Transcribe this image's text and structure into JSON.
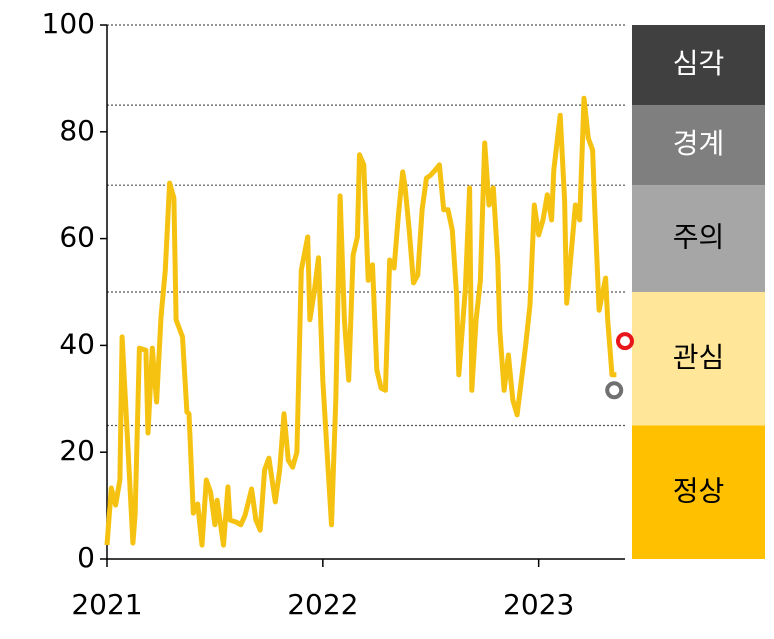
{
  "chart_data": {
    "type": "line",
    "x": [
      2021.0,
      2021.02,
      2021.04,
      2021.06,
      2021.07,
      2021.1,
      2021.12,
      2021.13,
      2021.15,
      2021.18,
      2021.19,
      2021.21,
      2021.23,
      2021.25,
      2021.27,
      2021.29,
      2021.31,
      2021.32,
      2021.35,
      2021.37,
      2021.38,
      2021.4,
      2021.42,
      2021.44,
      2021.46,
      2021.48,
      2021.5,
      2021.51,
      2021.54,
      2021.56,
      2021.57,
      2021.6,
      2021.62,
      2021.64,
      2021.67,
      2021.69,
      2021.71,
      2021.73,
      2021.75,
      2021.78,
      2021.8,
      2021.82,
      2021.84,
      2021.86,
      2021.88,
      2021.9,
      2021.93,
      2021.94,
      2021.96,
      2021.98,
      2022.0,
      2022.02,
      2022.04,
      2022.06,
      2022.08,
      2022.1,
      2022.12,
      2022.14,
      2022.16,
      2022.17,
      2022.19,
      2022.21,
      2022.23,
      2022.25,
      2022.27,
      2022.29,
      2022.31,
      2022.33,
      2022.35,
      2022.37,
      2022.38,
      2022.4,
      2022.42,
      2022.44,
      2022.46,
      2022.48,
      2022.5,
      2022.52,
      2022.54,
      2022.56,
      2022.58,
      2022.6,
      2022.62,
      2022.63,
      2022.66,
      2022.68,
      2022.69,
      2022.71,
      2022.73,
      2022.75,
      2022.77,
      2022.79,
      2022.81,
      2022.82,
      2022.84,
      2022.86,
      2022.88,
      2022.9,
      2022.92,
      2022.94,
      2022.96,
      2022.98,
      2023.0,
      2023.02,
      2023.04,
      2023.06,
      2023.07,
      2023.1,
      2023.12,
      2023.13,
      2023.15,
      2023.17,
      2023.19,
      2023.21,
      2023.23,
      2023.25,
      2023.26,
      2023.28,
      2023.31,
      2023.32,
      2023.34,
      2023.36
    ],
    "series": [
      {
        "color": "#f5c211",
        "values": [
          2.6,
          13.3,
          10.1,
          14.8,
          41.6,
          18.5,
          3.0,
          8.2,
          39.5,
          39.1,
          23.6,
          39.5,
          29.4,
          45.3,
          54.1,
          70.4,
          67.6,
          44.8,
          41.6,
          27.5,
          27.2,
          8.6,
          10.3,
          2.6,
          14.8,
          12.5,
          6.4,
          11.0,
          2.6,
          13.5,
          7.3,
          6.9,
          6.4,
          8.2,
          13.1,
          7.3,
          5.4,
          16.7,
          18.9,
          10.7,
          16.7,
          27.2,
          18.5,
          17.2,
          20.0,
          54.1,
          60.3,
          44.8,
          50.0,
          56.4,
          33.5,
          20.0,
          6.4,
          29.8,
          68.0,
          44.8,
          33.5,
          56.9,
          60.3,
          75.7,
          73.8,
          52.2,
          55.1,
          35.4,
          32.0,
          31.6,
          56.0,
          54.5,
          64.4,
          72.5,
          70.0,
          61.6,
          51.7,
          53.2,
          65.4,
          71.3,
          71.9,
          72.8,
          73.8,
          65.4,
          65.4,
          61.6,
          49.4,
          34.5,
          50.4,
          69.5,
          31.6,
          44.8,
          52.2,
          77.9,
          66.3,
          69.5,
          56.0,
          42.9,
          31.6,
          38.2,
          29.8,
          27.0,
          33.5,
          40.1,
          47.6,
          66.3,
          60.7,
          63.5,
          68.2,
          63.5,
          72.8,
          83.1,
          67.2,
          47.9,
          56.9,
          66.3,
          63.5,
          86.3,
          78.8,
          76.6,
          65.4,
          46.6,
          52.6,
          44.8,
          34.5,
          34.5
        ]
      }
    ],
    "markers": [
      {
        "x": 2023.4,
        "y": 40.8,
        "color": "#e8151b"
      },
      {
        "x": 2023.35,
        "y": 31.6,
        "color": "#707070"
      }
    ],
    "bands": [
      {
        "label": "정상",
        "from": 0,
        "to": 25,
        "color": "#ffc000"
      },
      {
        "label": "관심",
        "from": 25,
        "to": 50,
        "color": "#ffe699"
      },
      {
        "label": "주의",
        "from": 50,
        "to": 70,
        "color": "#a6a6a6"
      },
      {
        "label": "경계",
        "from": 70,
        "to": 85,
        "color": "#7f7f7f"
      },
      {
        "label": "심각",
        "from": 85,
        "to": 100,
        "color": "#404040"
      }
    ],
    "xlim": [
      2021,
      2023.4
    ],
    "xticks": [
      2021,
      2022,
      2023
    ],
    "ylim": [
      0,
      100
    ],
    "yticks": [
      0,
      20,
      40,
      60,
      80,
      100
    ]
  }
}
